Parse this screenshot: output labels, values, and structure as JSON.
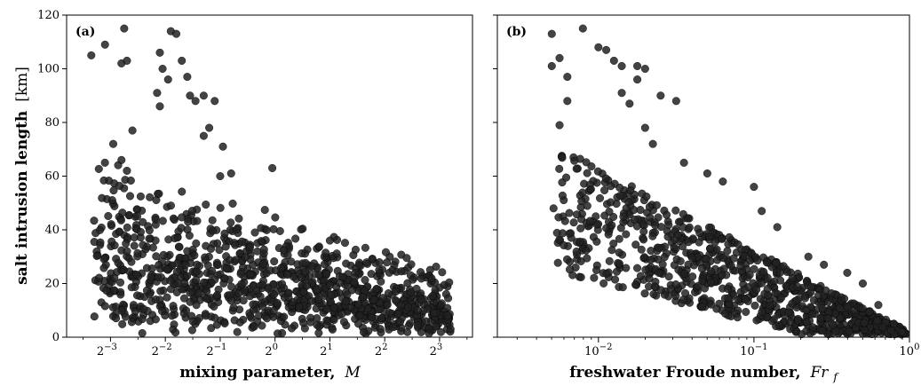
{
  "chart_data": [
    {
      "type": "scatter",
      "panel_label": "(a)",
      "xlabel": "mixing parameter,",
      "xlabel_symbol": "M",
      "ylabel": "salt intrusion length",
      "ylabel_unit": "[km]",
      "xscale": "log2",
      "xlim_log2": [
        -3.8,
        3.6
      ],
      "ylim": [
        0,
        120
      ],
      "x_ticks": [
        {
          "base": "2",
          "exp": "−3",
          "log2": -3
        },
        {
          "base": "2",
          "exp": "−2",
          "log2": -2
        },
        {
          "base": "2",
          "exp": "−1",
          "log2": -1
        },
        {
          "base": "2",
          "exp": "0",
          "log2": 0
        },
        {
          "base": "2",
          "exp": "1",
          "log2": 1
        },
        {
          "base": "2",
          "exp": "2",
          "log2": 2
        },
        {
          "base": "2",
          "exp": "3",
          "log2": 3
        }
      ],
      "y_ticks": [
        "0",
        "20",
        "40",
        "60",
        "80",
        "100",
        "120"
      ],
      "points_note_sample_log2M_vs_L": [
        [
          -3.35,
          105
        ],
        [
          -3.1,
          109
        ],
        [
          -2.75,
          115
        ],
        [
          -2.8,
          102
        ],
        [
          -2.7,
          103
        ],
        [
          -2.95,
          72
        ],
        [
          -2.6,
          77
        ],
        [
          -2.8,
          66
        ],
        [
          -2.7,
          62
        ],
        [
          -2.1,
          106
        ],
        [
          -2.05,
          100
        ],
        [
          -1.95,
          96
        ],
        [
          -2.15,
          91
        ],
        [
          -2.1,
          86
        ],
        [
          -1.9,
          114
        ],
        [
          -1.8,
          113
        ],
        [
          -1.7,
          103
        ],
        [
          -1.6,
          97
        ],
        [
          -1.55,
          90
        ],
        [
          -1.45,
          88
        ],
        [
          -1.3,
          90
        ],
        [
          -1.1,
          88
        ],
        [
          -1.2,
          78
        ],
        [
          -0.95,
          71
        ],
        [
          -1.3,
          75
        ],
        [
          -0.05,
          63
        ],
        [
          -0.8,
          61
        ],
        [
          -1.0,
          60
        ],
        [
          1.0,
          36
        ],
        [
          2.9,
          9
        ],
        [
          3.15,
          8
        ],
        [
          3.2,
          3
        ],
        [
          2.2,
          17
        ],
        [
          2.3,
          12
        ],
        [
          2.6,
          10
        ],
        [
          1.85,
          18
        ],
        [
          1.6,
          15
        ]
      ],
      "dense_cloud_note": "Dense cloud of roughly 1000 points spans log2 M from about -3.3 to 3.2, salt intrusion length mostly between 0 and 60 km, decreasing at higher M."
    },
    {
      "type": "scatter",
      "panel_label": "(b)",
      "xlabel": "freshwater Froude number,",
      "xlabel_symbol": "Fr",
      "xlabel_subscript": "f",
      "xscale": "log10",
      "xlim_log10": [
        -2.65,
        0
      ],
      "ylim": [
        0,
        120
      ],
      "x_ticks": [
        {
          "base": "10",
          "exp": "−2",
          "log10": -2
        },
        {
          "base": "10",
          "exp": "−1",
          "log10": -1
        },
        {
          "base": "10",
          "exp": "0",
          "log10": 0
        }
      ],
      "sample_points_log10Fr_vs_L": [
        [
          -2.3,
          113
        ],
        [
          -2.1,
          115
        ],
        [
          -2.3,
          101
        ],
        [
          -2.25,
          104
        ],
        [
          -2.2,
          97
        ],
        [
          -2.2,
          88
        ],
        [
          -2.25,
          79
        ],
        [
          -2.0,
          108
        ],
        [
          -1.95,
          107
        ],
        [
          -1.9,
          103
        ],
        [
          -1.85,
          101
        ],
        [
          -1.75,
          101
        ],
        [
          -1.7,
          100
        ],
        [
          -1.75,
          96
        ],
        [
          -1.85,
          91
        ],
        [
          -1.8,
          87
        ],
        [
          -1.6,
          90
        ],
        [
          -1.5,
          88
        ],
        [
          -1.7,
          78
        ],
        [
          -1.65,
          72
        ],
        [
          -1.45,
          65
        ],
        [
          -1.3,
          61
        ],
        [
          -1.2,
          58
        ],
        [
          -1.0,
          56
        ],
        [
          -0.95,
          47
        ],
        [
          -0.85,
          41
        ],
        [
          -0.65,
          30
        ],
        [
          -0.55,
          27
        ],
        [
          -0.4,
          24
        ],
        [
          -0.3,
          20
        ],
        [
          -0.2,
          12
        ],
        [
          -0.1,
          5
        ],
        [
          -0.05,
          2
        ]
      ],
      "dense_cloud_note": "Points form a wedge: about 2.3 to 0 on the log10 scale, upper envelope declining from ~115 km near Fr_f=0.007 to ~0 near Fr_f=1."
    }
  ]
}
